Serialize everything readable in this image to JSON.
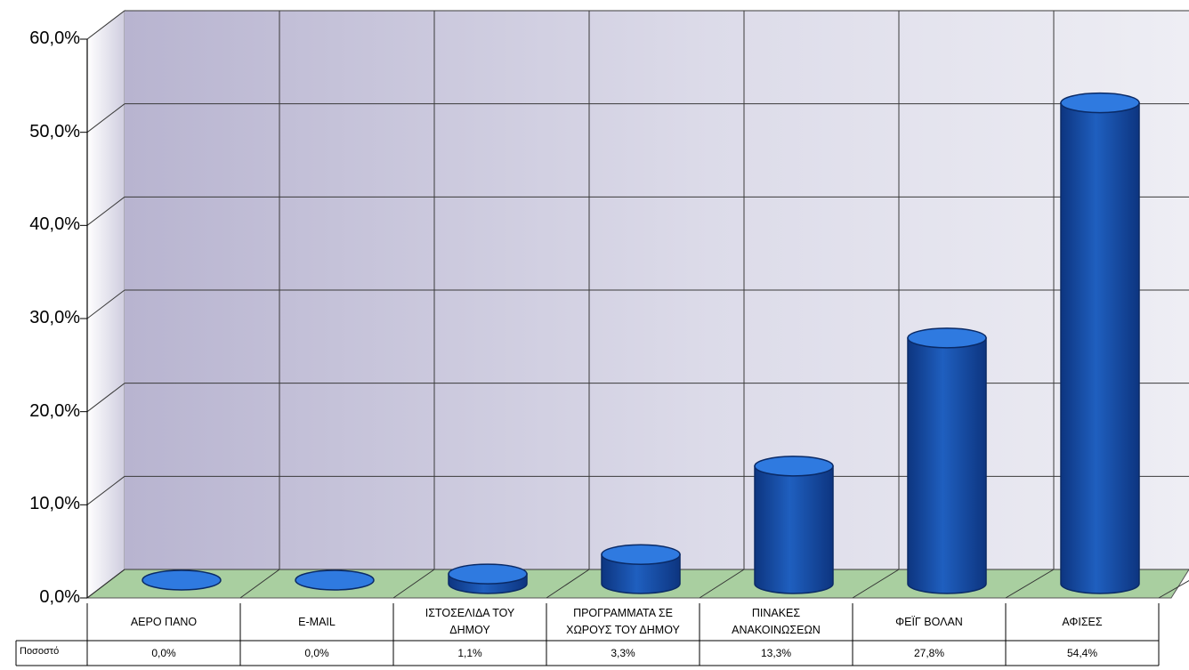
{
  "chart_data": {
    "type": "bar",
    "title": "",
    "categories": [
      "ΑΕΡΟ ΠΑΝΟ",
      "E-MAIL",
      "ΙΣΤΟΣΕΛΙΔΑ ΤΟΥ ΔΗΜΟΥ",
      "ΠΡΟΓΡΑΜΜΑΤΑ ΣΕ ΧΩΡΟΥΣ ΤΟΥ ΔΗΜΟΥ",
      "ΠΙΝΑΚΕΣ ΑΝΑΚΟΙΝΩΣΕΩΝ",
      "ΦΕΪΓ ΒΟΛΑΝ",
      "ΑΦΙΣΕΣ"
    ],
    "category_lines": [
      [
        "ΑΕΡΟ ΠΑΝΟ"
      ],
      [
        "E-MAIL"
      ],
      [
        "ΙΣΤΟΣΕΛΙΔΑ ΤΟΥ",
        "ΔΗΜΟΥ"
      ],
      [
        "ΠΡΟΓΡΑΜΜΑΤΑ ΣΕ",
        "ΧΩΡΟΥΣ ΤΟΥ ΔΗΜΟΥ"
      ],
      [
        "ΠΙΝΑΚΕΣ",
        "ΑΝΑΚΟΙΝΩΣΕΩΝ"
      ],
      [
        "ΦΕΪΓ ΒΟΛΑΝ"
      ],
      [
        "ΑΦΙΣΕΣ"
      ]
    ],
    "series": [
      {
        "name": "Ποσοστό",
        "values": [
          0.0,
          0.0,
          1.1,
          3.3,
          13.3,
          27.8,
          54.4
        ]
      }
    ],
    "value_labels": [
      "0,0%",
      "0,0%",
      "1,1%",
      "3,3%",
      "13,3%",
      "27,8%",
      "54,4%"
    ],
    "yticks": [
      "0,0%",
      "10,0%",
      "20,0%",
      "30,0%",
      "40,0%",
      "50,0%",
      "60,0%"
    ],
    "ylim": [
      0,
      60
    ],
    "xlabel": "",
    "ylabel": "",
    "grid": true,
    "three_d": true,
    "legend": "data-table-row",
    "data_table_row_header": "Ποσοστό",
    "colors": {
      "bar": "#1f5fbf",
      "bar_dark": "#0d3580",
      "bar_top": "#2f7ae0",
      "wall": "#c9c7dc",
      "floor": "#a9cfa0",
      "grid": "#3a3a3a"
    }
  }
}
